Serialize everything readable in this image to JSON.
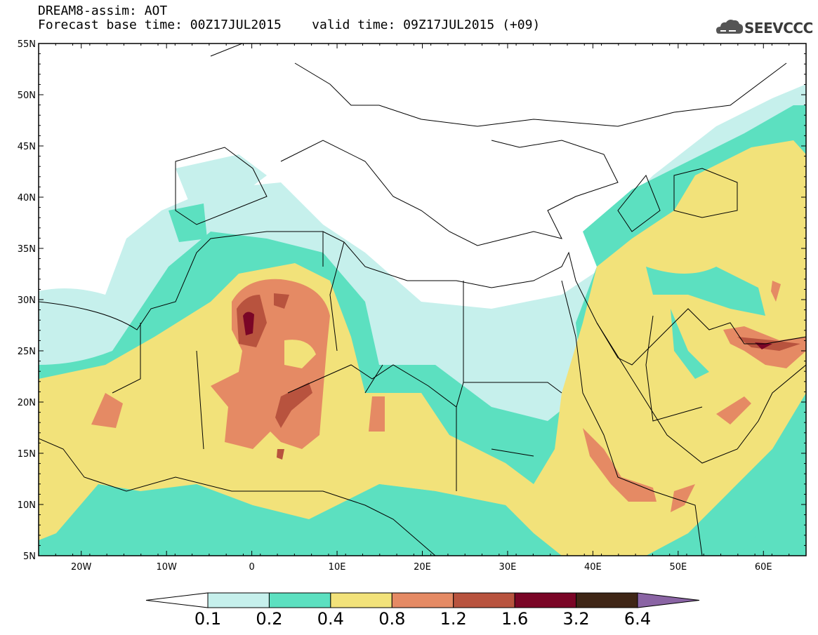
{
  "header": {
    "title": "DREAM8-assim: AOT",
    "base_time": "Forecast base time: 00Z17JUL2015",
    "valid_time": "valid time: 09Z17JUL2015 (+09)",
    "logo_text": "SEEVCCC"
  },
  "map": {
    "lat_labels": [
      "55N",
      "50N",
      "45N",
      "40N",
      "35N",
      "30N",
      "25N",
      "20N",
      "15N",
      "10N",
      "5N"
    ],
    "lon_labels": [
      "20W",
      "10W",
      "0",
      "10E",
      "20E",
      "30E",
      "40E",
      "50E",
      "60E"
    ],
    "lat_range": [
      5,
      55
    ],
    "lon_range": [
      -25,
      65
    ]
  },
  "colorbar": {
    "levels": [
      "0.1",
      "0.2",
      "0.4",
      "0.8",
      "1.2",
      "1.6",
      "3.2",
      "6.4"
    ],
    "colors": [
      "#ffffff",
      "#c6f0ec",
      "#5ce0c0",
      "#f2e27a",
      "#e58a64",
      "#b8533e",
      "#7a0526",
      "#3f2616",
      "#8a64a4"
    ]
  }
}
